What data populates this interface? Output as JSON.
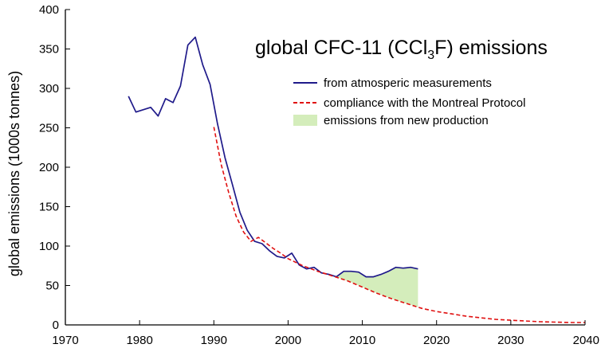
{
  "chart_data": {
    "type": "line",
    "title": "global CFC-11 (CCl₃F) emissions",
    "title_main": "global CFC-11 (CCl",
    "title_sub": "3",
    "title_end": "F) emissions",
    "xlabel": "",
    "ylabel": "global emissions (1000s tonnes)",
    "xlim": [
      1970,
      2040
    ],
    "ylim": [
      0,
      400
    ],
    "x_ticks": [
      1970,
      1980,
      1990,
      2000,
      2010,
      2020,
      2030,
      2040
    ],
    "y_ticks": [
      0,
      50,
      100,
      150,
      200,
      250,
      300,
      350,
      400
    ],
    "grid": false,
    "legend_position": "top-right",
    "series": [
      {
        "name": "from atmosperic measurements",
        "style": "solid",
        "color": "#1f1a8a",
        "points": [
          [
            1978.5,
            290
          ],
          [
            1979.5,
            270
          ],
          [
            1981.5,
            276
          ],
          [
            1982.5,
            265
          ],
          [
            1983.5,
            287
          ],
          [
            1984.5,
            282
          ],
          [
            1985.5,
            303
          ],
          [
            1986.5,
            355
          ],
          [
            1987.5,
            365
          ],
          [
            1988.5,
            330
          ],
          [
            1989.5,
            305
          ],
          [
            1990.5,
            255
          ],
          [
            1991.5,
            212
          ],
          [
            1992.5,
            178
          ],
          [
            1993.5,
            143
          ],
          [
            1994.5,
            120
          ],
          [
            1995.5,
            106
          ],
          [
            1996.5,
            103
          ],
          [
            1997.5,
            94
          ],
          [
            1998.5,
            87
          ],
          [
            1999.5,
            85
          ],
          [
            2000.5,
            91
          ],
          [
            2001.5,
            76
          ],
          [
            2002.5,
            71
          ],
          [
            2003.5,
            73
          ],
          [
            2004.5,
            66
          ],
          [
            2005.5,
            64
          ],
          [
            2006.5,
            61
          ],
          [
            2007.5,
            68
          ],
          [
            2008.5,
            68
          ],
          [
            2009.5,
            67
          ],
          [
            2010.5,
            61
          ],
          [
            2011.5,
            61
          ],
          [
            2012.5,
            64
          ],
          [
            2013.5,
            68
          ],
          [
            2014.5,
            73
          ],
          [
            2015.5,
            72
          ],
          [
            2016.5,
            73
          ],
          [
            2017.5,
            71
          ]
        ]
      },
      {
        "name": "compliance with the Montreal Protocol",
        "style": "dashed",
        "color": "#e01010",
        "points": [
          [
            1990,
            251
          ],
          [
            1991,
            203
          ],
          [
            1992,
            168
          ],
          [
            1993,
            138
          ],
          [
            1994,
            118
          ],
          [
            1995,
            106
          ],
          [
            1996,
            111
          ],
          [
            1997,
            104
          ],
          [
            1998,
            97
          ],
          [
            1999,
            91
          ],
          [
            2000,
            84
          ],
          [
            2002,
            75
          ],
          [
            2004,
            68
          ],
          [
            2006,
            62
          ],
          [
            2008,
            56
          ],
          [
            2010,
            48
          ],
          [
            2012,
            40
          ],
          [
            2014,
            33
          ],
          [
            2016,
            27
          ],
          [
            2018,
            21
          ],
          [
            2020,
            17
          ],
          [
            2022,
            14
          ],
          [
            2024,
            11
          ],
          [
            2026,
            9
          ],
          [
            2028,
            7
          ],
          [
            2030,
            6
          ],
          [
            2032,
            5
          ],
          [
            2034,
            4
          ],
          [
            2036,
            3.5
          ],
          [
            2038,
            3
          ],
          [
            2040,
            3
          ]
        ]
      }
    ],
    "area": {
      "name": "emissions from new production",
      "color": "#d4edbb",
      "x_range": [
        2006.5,
        2017.5
      ]
    }
  }
}
